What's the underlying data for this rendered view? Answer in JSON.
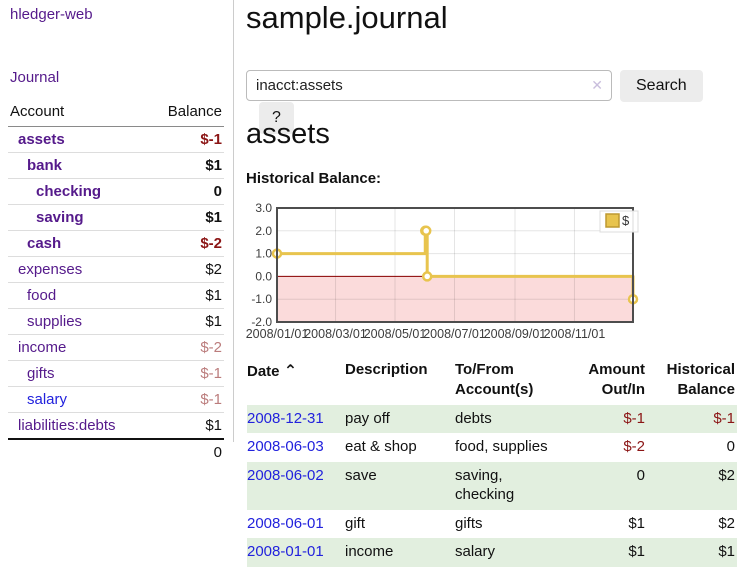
{
  "app": {
    "brand": "hledger-web",
    "nav_journal": "Journal"
  },
  "colors": {
    "link_purple": "#551a8b",
    "link_blue": "#2222dd",
    "negative_strong": "#8b1515",
    "negative_muted": "#bb7c7c",
    "row_stripe_green": "#e2efdf",
    "chart_line": "#e8c44e",
    "chart_legend_border": "#bd9930",
    "chart_negative_fill": "#fbdbdb",
    "chart_zero_line": "#8b0000",
    "chart_border": "#4d4d4d",
    "axis_text": "#3d3d3d"
  },
  "icons": {
    "search_clear": "✕",
    "sort_caret": "⌃"
  },
  "sidebar": {
    "account_header": "Account",
    "balance_header": "Balance",
    "accounts": [
      {
        "name": "assets",
        "balance": "$-1",
        "indent": 0,
        "bold": true,
        "link": "purple"
      },
      {
        "name": "bank",
        "balance": "$1",
        "indent": 1,
        "bold": true,
        "link": "purple"
      },
      {
        "name": "checking",
        "balance": "0",
        "indent": 2,
        "bold": true,
        "link": "purple"
      },
      {
        "name": "saving",
        "balance": "$1",
        "indent": 2,
        "bold": true,
        "link": "purple"
      },
      {
        "name": "cash",
        "balance": "$-2",
        "indent": 1,
        "bold": true,
        "link": "purple"
      },
      {
        "name": "expenses",
        "balance": "$2",
        "indent": 0,
        "bold": false,
        "link": "purple"
      },
      {
        "name": "food",
        "balance": "$1",
        "indent": 1,
        "bold": false,
        "link": "purple"
      },
      {
        "name": "supplies",
        "balance": "$1",
        "indent": 1,
        "bold": false,
        "link": "purple"
      },
      {
        "name": "income",
        "balance": "$-2",
        "indent": 0,
        "bold": false,
        "link": "purple"
      },
      {
        "name": "gifts",
        "balance": "$-1",
        "indent": 1,
        "bold": false,
        "link": "purple"
      },
      {
        "name": "salary",
        "balance": "$-1",
        "indent": 1,
        "bold": false,
        "link": "blue"
      },
      {
        "name": "liabilities:debts",
        "balance": "$1",
        "indent": 0,
        "bold": false,
        "link": "purple"
      }
    ],
    "total": "0"
  },
  "header": {
    "title": "sample.journal"
  },
  "search": {
    "value": "inacct:assets",
    "button": "Search",
    "help": "?"
  },
  "account_page": {
    "title": "assets",
    "chart_label": "Historical Balance:"
  },
  "chart_data": {
    "type": "line",
    "title": "Historical Balance:",
    "legend": [
      {
        "label": "$"
      }
    ],
    "legend_position": "top-right",
    "step": true,
    "series": [
      {
        "name": "$",
        "points": [
          [
            "2008-01-01",
            1
          ],
          [
            "2008-06-01",
            2
          ],
          [
            "2008-06-02",
            2
          ],
          [
            "2008-06-03",
            0
          ],
          [
            "2008-12-31",
            -1
          ]
        ]
      }
    ],
    "x_range": [
      "2008-01-01",
      "2008-12-31"
    ],
    "ylim": [
      -2,
      3
    ],
    "yticks": [
      3,
      2,
      1,
      0,
      -1,
      -2
    ],
    "ytick_labels": [
      "3.0",
      "2.0",
      "1.0",
      "0.0",
      "-1.0",
      "-2.0"
    ],
    "xticks": [
      {
        "date": "2008-01-01",
        "label": "2008/01/01"
      },
      {
        "date": "2008-03-01",
        "label": "2008/03/01"
      },
      {
        "date": "2008-05-01",
        "label": "2008/05/01"
      },
      {
        "date": "2008-07-01",
        "label": "2008/07/01"
      },
      {
        "date": "2008-09-01",
        "label": "2008/09/01"
      },
      {
        "date": "2008-11-01",
        "label": "2008/11/01"
      }
    ],
    "grid": true,
    "negative_region_shaded": true
  },
  "register": {
    "columns": [
      "Date",
      "Description",
      "To/From Account(s)",
      "Amount Out/In",
      "Historical Balance"
    ],
    "rows": [
      {
        "date": "2008-12-31",
        "description": "pay off",
        "accounts": "debts",
        "amount": "$-1",
        "balance": "$-1",
        "green": true
      },
      {
        "date": "2008-06-03",
        "description": "eat & shop",
        "accounts": "food, supplies",
        "amount": "$-2",
        "balance": "0",
        "green": false
      },
      {
        "date": "2008-06-02",
        "description": "save",
        "accounts": "saving, checking",
        "amount": "0",
        "balance": "$2",
        "green": true
      },
      {
        "date": "2008-06-01",
        "description": "gift",
        "accounts": "gifts",
        "amount": "$1",
        "balance": "$2",
        "green": false
      },
      {
        "date": "2008-01-01",
        "description": "income",
        "accounts": "salary",
        "amount": "$1",
        "balance": "$1",
        "green": true
      }
    ]
  }
}
